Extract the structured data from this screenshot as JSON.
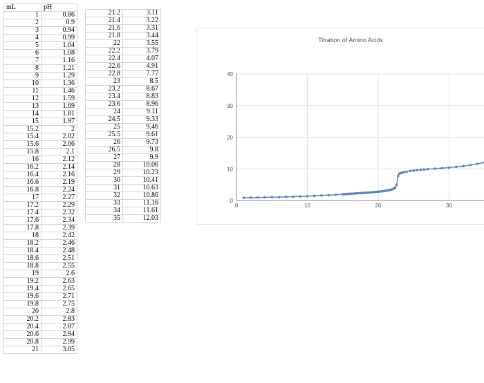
{
  "table": {
    "headers": [
      "mL",
      "pH"
    ],
    "col1": [
      [
        "1",
        "0.86"
      ],
      [
        "2",
        "0.9"
      ],
      [
        "3",
        "0.94"
      ],
      [
        "4",
        "0.99"
      ],
      [
        "5",
        "1.04"
      ],
      [
        "6",
        "1.08"
      ],
      [
        "7",
        "1.16"
      ],
      [
        "8",
        "1.21"
      ],
      [
        "9",
        "1.29"
      ],
      [
        "10",
        "1.36"
      ],
      [
        "11",
        "1.46"
      ],
      [
        "12",
        "1.59"
      ],
      [
        "13",
        "1.69"
      ],
      [
        "14",
        "1.81"
      ],
      [
        "15",
        "1.97"
      ],
      [
        "15.2",
        "2"
      ],
      [
        "15.4",
        "2.02"
      ],
      [
        "15.6",
        "2.06"
      ],
      [
        "15.8",
        "2.1"
      ],
      [
        "16",
        "2.12"
      ],
      [
        "16.2",
        "2.14"
      ],
      [
        "16.4",
        "2.16"
      ],
      [
        "16.6",
        "2.19"
      ],
      [
        "16.8",
        "2.24"
      ],
      [
        "17",
        "2.27"
      ],
      [
        "17.2",
        "2.29"
      ],
      [
        "17.4",
        "2.32"
      ],
      [
        "17.6",
        "2.34"
      ],
      [
        "17.8",
        "2.39"
      ],
      [
        "18",
        "2.42"
      ],
      [
        "18.2",
        "2.46"
      ],
      [
        "18.4",
        "2.48"
      ],
      [
        "18.6",
        "2.51"
      ],
      [
        "18.8",
        "2.55"
      ],
      [
        "19",
        "2.6"
      ],
      [
        "19.2",
        "2.63"
      ],
      [
        "19.4",
        "2.65"
      ],
      [
        "19.6",
        "2.71"
      ],
      [
        "19.8",
        "2.75"
      ],
      [
        "20",
        "2.8"
      ],
      [
        "20.2",
        "2.83"
      ],
      [
        "20.4",
        "2.87"
      ],
      [
        "20.6",
        "2.94"
      ],
      [
        "20.8",
        "2.99"
      ],
      [
        "21",
        "3.05"
      ]
    ],
    "col2": [
      [
        "21.2",
        "3.11"
      ],
      [
        "21.4",
        "3.22"
      ],
      [
        "21.6",
        "3.31"
      ],
      [
        "21.8",
        "3.44"
      ],
      [
        "22",
        "3.55"
      ],
      [
        "22.2",
        "3.79"
      ],
      [
        "22.4",
        "4.07"
      ],
      [
        "22.6",
        "4.91"
      ],
      [
        "22.8",
        "7.77"
      ],
      [
        "23",
        "8.5"
      ],
      [
        "23.2",
        "8.67"
      ],
      [
        "23.4",
        "8.83"
      ],
      [
        "23.6",
        "8.96"
      ],
      [
        "24",
        "9.11"
      ],
      [
        "24.5",
        "9.33"
      ],
      [
        "25",
        "9.46"
      ],
      [
        "25.5",
        "9.61"
      ],
      [
        "26",
        "9.73"
      ],
      [
        "26.5",
        "9.8"
      ],
      [
        "27",
        "9.9"
      ],
      [
        "28",
        "10.06"
      ],
      [
        "29",
        "10.23"
      ],
      [
        "30",
        "10.41"
      ],
      [
        "31",
        "10.63"
      ],
      [
        "32",
        "10.86"
      ],
      [
        "33",
        "11.16"
      ],
      [
        "34",
        "11.61"
      ],
      [
        "35",
        "12.03"
      ]
    ]
  },
  "chart_data": {
    "type": "scatter",
    "title": "Titration of Amino Acids",
    "xlabel": "",
    "ylabel": "",
    "xlim": [
      0,
      35
    ],
    "ylim": [
      0,
      40
    ],
    "xticks": [
      0,
      10,
      20,
      30
    ],
    "yticks": [
      0,
      10,
      20,
      30,
      40
    ],
    "grid": true,
    "color": "#5b86c5",
    "x": [
      1,
      2,
      3,
      4,
      5,
      6,
      7,
      8,
      9,
      10,
      11,
      12,
      13,
      14,
      15,
      15.2,
      15.4,
      15.6,
      15.8,
      16,
      16.2,
      16.4,
      16.6,
      16.8,
      17,
      17.2,
      17.4,
      17.6,
      17.8,
      18,
      18.2,
      18.4,
      18.6,
      18.8,
      19,
      19.2,
      19.4,
      19.6,
      19.8,
      20,
      20.2,
      20.4,
      20.6,
      20.8,
      21,
      21.2,
      21.4,
      21.6,
      21.8,
      22,
      22.2,
      22.4,
      22.6,
      22.8,
      23,
      23.2,
      23.4,
      23.6,
      24,
      24.5,
      25,
      25.5,
      26,
      26.5,
      27,
      28,
      29,
      30,
      31,
      32,
      33,
      34,
      35
    ],
    "y": [
      0.86,
      0.9,
      0.94,
      0.99,
      1.04,
      1.08,
      1.16,
      1.21,
      1.29,
      1.36,
      1.46,
      1.59,
      1.69,
      1.81,
      1.97,
      2,
      2.02,
      2.06,
      2.1,
      2.12,
      2.14,
      2.16,
      2.19,
      2.24,
      2.27,
      2.29,
      2.32,
      2.34,
      2.39,
      2.42,
      2.46,
      2.48,
      2.51,
      2.55,
      2.6,
      2.63,
      2.65,
      2.71,
      2.75,
      2.8,
      2.83,
      2.87,
      2.94,
      2.99,
      3.05,
      3.11,
      3.22,
      3.31,
      3.44,
      3.55,
      3.79,
      4.07,
      4.91,
      7.77,
      8.5,
      8.67,
      8.83,
      8.96,
      9.11,
      9.33,
      9.46,
      9.61,
      9.73,
      9.8,
      9.9,
      10.06,
      10.23,
      10.41,
      10.63,
      10.86,
      11.16,
      11.61,
      12.03
    ]
  }
}
